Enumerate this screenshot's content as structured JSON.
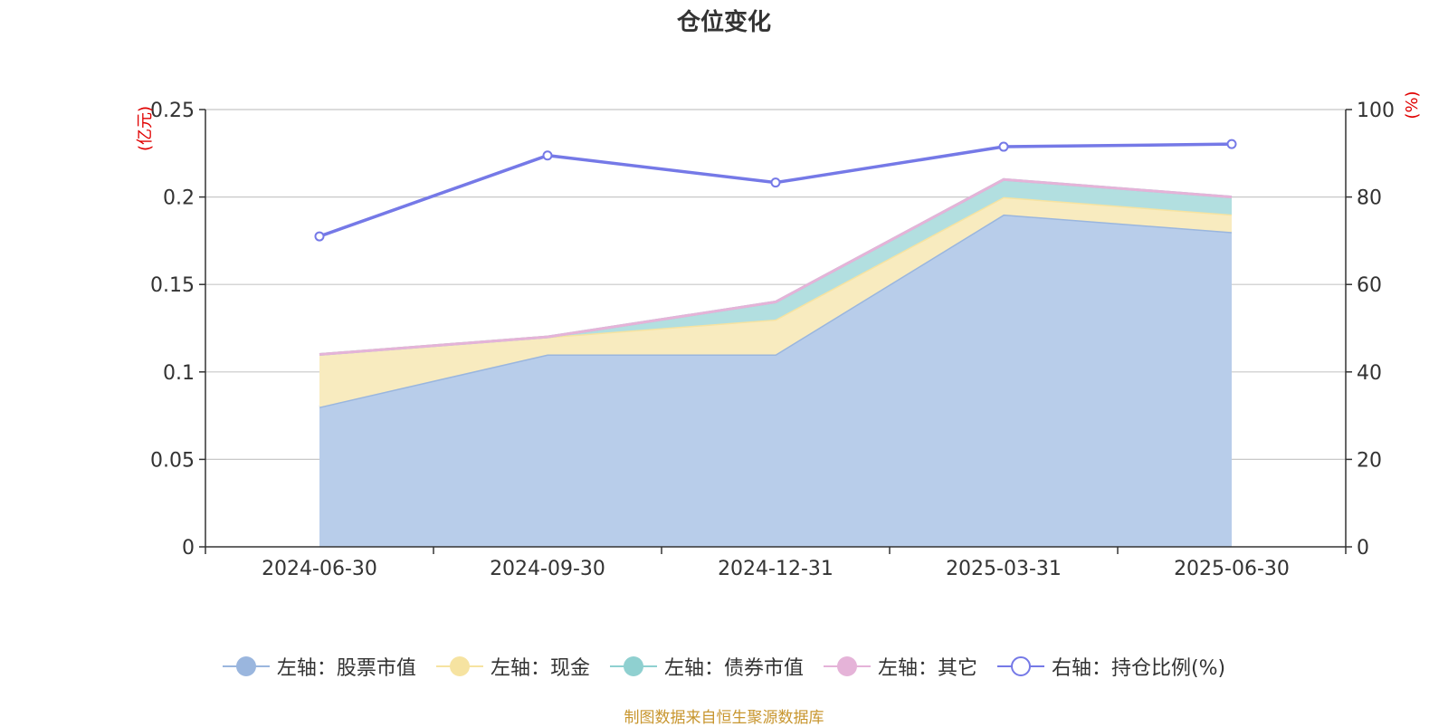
{
  "chart_data": {
    "type": "area",
    "title": "仓位变化",
    "categories": [
      "2024-06-30",
      "2024-09-30",
      "2024-12-31",
      "2025-03-31",
      "2025-06-30"
    ],
    "stacked": true,
    "left_axis": {
      "unit_label": "(亿元)",
      "ylim": [
        0,
        0.25
      ],
      "ticks": [
        0,
        0.05,
        0.1,
        0.15,
        0.2,
        0.25
      ],
      "tick_labels": [
        "0",
        "0.05",
        "0.1",
        "0.15",
        "0.2",
        "0.25"
      ]
    },
    "right_axis": {
      "unit_label": "(%)",
      "ylim": [
        0,
        100
      ],
      "ticks": [
        0,
        20,
        40,
        60,
        80,
        100
      ],
      "tick_labels": [
        "0",
        "20",
        "40",
        "60",
        "80",
        "100"
      ]
    },
    "series": [
      {
        "name": "左轴：股票市值",
        "axis": "left",
        "kind": "area",
        "color": "#9ab6de",
        "fill": "#b8cdea",
        "values": [
          0.08,
          0.11,
          0.11,
          0.19,
          0.18
        ]
      },
      {
        "name": "左轴：现金",
        "axis": "left",
        "kind": "area",
        "color": "#f6e3a1",
        "fill": "#f8ebbf",
        "values": [
          0.03,
          0.01,
          0.02,
          0.01,
          0.01
        ]
      },
      {
        "name": "左轴：债券市值",
        "axis": "left",
        "kind": "area",
        "color": "#8fd0d0",
        "fill": "#b2dfe0",
        "values": [
          0,
          0,
          0.01,
          0.01,
          0.01
        ]
      },
      {
        "name": "左轴：其它",
        "axis": "left",
        "kind": "area",
        "color": "#e5b3d8",
        "fill": "#efcfe6",
        "values": [
          0,
          0,
          0,
          0,
          0
        ]
      },
      {
        "name": "右轴：持仓比例(%)",
        "axis": "right",
        "kind": "line",
        "color": "#7579e7",
        "values": [
          71,
          89.5,
          83.3,
          91.5,
          92.1
        ]
      }
    ],
    "grid": true,
    "legend_position": "bottom"
  },
  "source_note": "制图数据来自恒生聚源数据库"
}
